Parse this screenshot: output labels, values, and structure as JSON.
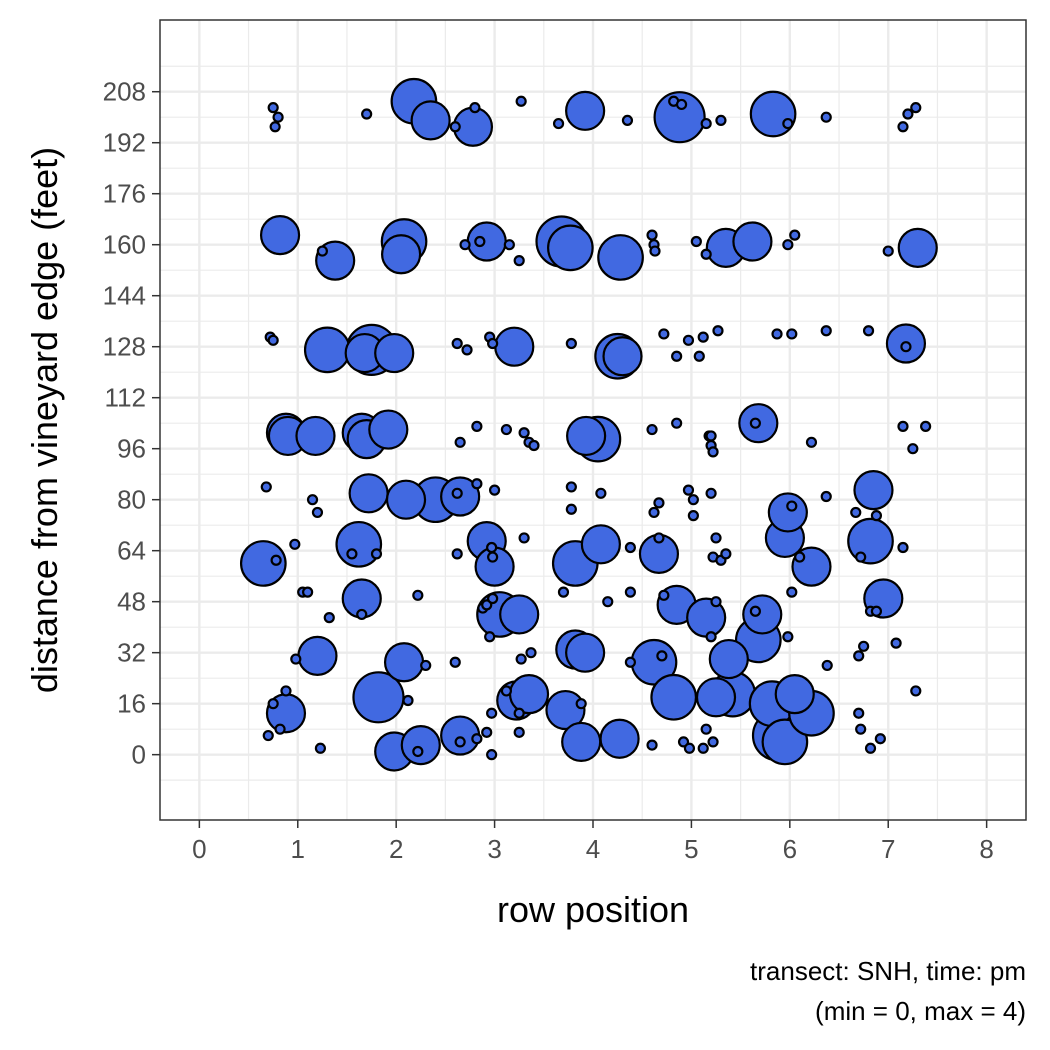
{
  "chart_data": {
    "type": "scatter",
    "subtype": "bubble",
    "xlabel": "row position",
    "ylabel": "distance from vineyard edge (feet)",
    "caption_line1": "transect: SNH, time: pm",
    "caption_line2": "(min = 0, max = 4)",
    "xlim": [
      -0.4,
      8.4
    ],
    "ylim": [
      -20.5,
      230.5
    ],
    "x_ticks": [
      0,
      1,
      2,
      3,
      4,
      5,
      6,
      7,
      8
    ],
    "x_tick_labels": [
      "0",
      "1",
      "2",
      "3",
      "4",
      "5",
      "6",
      "7",
      "8"
    ],
    "y_ticks": [
      0,
      16,
      32,
      48,
      64,
      80,
      96,
      112,
      128,
      144,
      160,
      176,
      192,
      208
    ],
    "y_tick_labels": [
      "0",
      "16",
      "32",
      "48",
      "64",
      "80",
      "96",
      "112",
      "128",
      "144",
      "160",
      "176",
      "192",
      "208"
    ],
    "size_range": [
      0,
      4
    ],
    "grid": true,
    "theme": "bw",
    "point_fill": "#4169E1",
    "point_stroke": "#000000",
    "points": [
      {
        "x": 0.75,
        "y": 203,
        "size": 0
      },
      {
        "x": 0.8,
        "y": 200,
        "size": 0
      },
      {
        "x": 0.77,
        "y": 197,
        "size": 0
      },
      {
        "x": 1.7,
        "y": 201,
        "size": 0
      },
      {
        "x": 2.18,
        "y": 205,
        "size": 3
      },
      {
        "x": 2.35,
        "y": 199,
        "size": 2
      },
      {
        "x": 2.6,
        "y": 197,
        "size": 0
      },
      {
        "x": 2.8,
        "y": 203,
        "size": 0
      },
      {
        "x": 2.78,
        "y": 197,
        "size": 2
      },
      {
        "x": 3.27,
        "y": 205,
        "size": 0
      },
      {
        "x": 3.65,
        "y": 198,
        "size": 0
      },
      {
        "x": 3.92,
        "y": 202,
        "size": 2
      },
      {
        "x": 4.35,
        "y": 199,
        "size": 0
      },
      {
        "x": 4.82,
        "y": 205,
        "size": 0
      },
      {
        "x": 4.88,
        "y": 200,
        "size": 4
      },
      {
        "x": 4.9,
        "y": 204,
        "size": 0
      },
      {
        "x": 5.15,
        "y": 198,
        "size": 0
      },
      {
        "x": 5.3,
        "y": 199,
        "size": 0
      },
      {
        "x": 5.83,
        "y": 201,
        "size": 3
      },
      {
        "x": 5.98,
        "y": 198,
        "size": 0
      },
      {
        "x": 6.37,
        "y": 200,
        "size": 0
      },
      {
        "x": 7.15,
        "y": 197,
        "size": 0
      },
      {
        "x": 7.2,
        "y": 201,
        "size": 0
      },
      {
        "x": 7.28,
        "y": 203,
        "size": 0
      },
      {
        "x": 0.82,
        "y": 163,
        "size": 2
      },
      {
        "x": 1.25,
        "y": 158,
        "size": 0
      },
      {
        "x": 1.38,
        "y": 155,
        "size": 2
      },
      {
        "x": 2.05,
        "y": 157,
        "size": 2
      },
      {
        "x": 2.08,
        "y": 161,
        "size": 3
      },
      {
        "x": 2.7,
        "y": 160,
        "size": 0
      },
      {
        "x": 2.85,
        "y": 161,
        "size": 0
      },
      {
        "x": 2.92,
        "y": 161,
        "size": 2
      },
      {
        "x": 3.15,
        "y": 160,
        "size": 0
      },
      {
        "x": 3.25,
        "y": 155,
        "size": 0
      },
      {
        "x": 3.77,
        "y": 159,
        "size": 3
      },
      {
        "x": 3.68,
        "y": 161,
        "size": 4
      },
      {
        "x": 4.28,
        "y": 156,
        "size": 3
      },
      {
        "x": 4.6,
        "y": 163,
        "size": 0
      },
      {
        "x": 4.62,
        "y": 160,
        "size": 0
      },
      {
        "x": 4.63,
        "y": 158,
        "size": 0
      },
      {
        "x": 5.05,
        "y": 161,
        "size": 0
      },
      {
        "x": 5.15,
        "y": 157,
        "size": 0
      },
      {
        "x": 5.35,
        "y": 159,
        "size": 2
      },
      {
        "x": 5.62,
        "y": 161,
        "size": 2
      },
      {
        "x": 5.98,
        "y": 160,
        "size": 0
      },
      {
        "x": 6.05,
        "y": 163,
        "size": 0
      },
      {
        "x": 7.0,
        "y": 158,
        "size": 0
      },
      {
        "x": 7.3,
        "y": 159,
        "size": 2
      },
      {
        "x": 0.72,
        "y": 131,
        "size": 0
      },
      {
        "x": 0.75,
        "y": 130,
        "size": 0
      },
      {
        "x": 1.3,
        "y": 127,
        "size": 3
      },
      {
        "x": 1.75,
        "y": 127,
        "size": 4
      },
      {
        "x": 1.68,
        "y": 126,
        "size": 2
      },
      {
        "x": 1.98,
        "y": 126,
        "size": 2
      },
      {
        "x": 2.62,
        "y": 129,
        "size": 0
      },
      {
        "x": 2.72,
        "y": 127,
        "size": 0
      },
      {
        "x": 2.95,
        "y": 131,
        "size": 0
      },
      {
        "x": 2.98,
        "y": 129,
        "size": 0
      },
      {
        "x": 3.2,
        "y": 128,
        "size": 2
      },
      {
        "x": 3.78,
        "y": 129,
        "size": 0
      },
      {
        "x": 4.25,
        "y": 125,
        "size": 3
      },
      {
        "x": 4.3,
        "y": 125,
        "size": 2
      },
      {
        "x": 4.72,
        "y": 132,
        "size": 0
      },
      {
        "x": 4.85,
        "y": 125,
        "size": 0
      },
      {
        "x": 4.97,
        "y": 130,
        "size": 0
      },
      {
        "x": 5.08,
        "y": 125,
        "size": 0
      },
      {
        "x": 5.12,
        "y": 131,
        "size": 0
      },
      {
        "x": 5.27,
        "y": 133,
        "size": 0
      },
      {
        "x": 5.87,
        "y": 132,
        "size": 0
      },
      {
        "x": 6.02,
        "y": 132,
        "size": 0
      },
      {
        "x": 6.37,
        "y": 133,
        "size": 0
      },
      {
        "x": 6.8,
        "y": 133,
        "size": 0
      },
      {
        "x": 7.18,
        "y": 128,
        "size": 0
      },
      {
        "x": 7.18,
        "y": 129,
        "size": 2
      },
      {
        "x": 0.88,
        "y": 101,
        "size": 2
      },
      {
        "x": 0.9,
        "y": 100,
        "size": 2
      },
      {
        "x": 1.18,
        "y": 100,
        "size": 2
      },
      {
        "x": 1.65,
        "y": 101,
        "size": 2
      },
      {
        "x": 1.7,
        "y": 99,
        "size": 2
      },
      {
        "x": 1.92,
        "y": 102,
        "size": 2
      },
      {
        "x": 2.65,
        "y": 98,
        "size": 0
      },
      {
        "x": 2.82,
        "y": 103,
        "size": 0
      },
      {
        "x": 3.12,
        "y": 102,
        "size": 0
      },
      {
        "x": 3.3,
        "y": 101,
        "size": 0
      },
      {
        "x": 3.35,
        "y": 98,
        "size": 0
      },
      {
        "x": 3.4,
        "y": 97,
        "size": 0
      },
      {
        "x": 3.93,
        "y": 100,
        "size": 2
      },
      {
        "x": 4.05,
        "y": 99,
        "size": 3
      },
      {
        "x": 4.6,
        "y": 102,
        "size": 0
      },
      {
        "x": 4.85,
        "y": 104,
        "size": 0
      },
      {
        "x": 5.18,
        "y": 100,
        "size": 0
      },
      {
        "x": 5.2,
        "y": 97,
        "size": 0
      },
      {
        "x": 5.22,
        "y": 95,
        "size": 0
      },
      {
        "x": 5.2,
        "y": 100,
        "size": 0
      },
      {
        "x": 5.68,
        "y": 104,
        "size": 2
      },
      {
        "x": 5.65,
        "y": 104,
        "size": 0
      },
      {
        "x": 6.22,
        "y": 98,
        "size": 0
      },
      {
        "x": 7.15,
        "y": 103,
        "size": 0
      },
      {
        "x": 7.25,
        "y": 96,
        "size": 0
      },
      {
        "x": 7.38,
        "y": 103,
        "size": 0
      },
      {
        "x": 0.68,
        "y": 84,
        "size": 0
      },
      {
        "x": 0.65,
        "y": 60,
        "size": 3
      },
      {
        "x": 0.78,
        "y": 61,
        "size": 0
      },
      {
        "x": 0.97,
        "y": 66,
        "size": 0
      },
      {
        "x": 1.15,
        "y": 80,
        "size": 0
      },
      {
        "x": 1.2,
        "y": 76,
        "size": 0
      },
      {
        "x": 1.55,
        "y": 63,
        "size": 0
      },
      {
        "x": 1.62,
        "y": 66,
        "size": 3
      },
      {
        "x": 1.72,
        "y": 82,
        "size": 2
      },
      {
        "x": 1.8,
        "y": 63,
        "size": 0
      },
      {
        "x": 2.1,
        "y": 80,
        "size": 2
      },
      {
        "x": 2.4,
        "y": 80,
        "size": 3
      },
      {
        "x": 2.65,
        "y": 81,
        "size": 2
      },
      {
        "x": 2.62,
        "y": 82,
        "size": 0
      },
      {
        "x": 2.82,
        "y": 85,
        "size": 0
      },
      {
        "x": 2.62,
        "y": 63,
        "size": 0
      },
      {
        "x": 2.92,
        "y": 67,
        "size": 2
      },
      {
        "x": 2.97,
        "y": 65,
        "size": 0
      },
      {
        "x": 2.98,
        "y": 62,
        "size": 0
      },
      {
        "x": 3.0,
        "y": 59,
        "size": 2
      },
      {
        "x": 3.0,
        "y": 83,
        "size": 0
      },
      {
        "x": 3.3,
        "y": 68,
        "size": 0
      },
      {
        "x": 3.78,
        "y": 84,
        "size": 0
      },
      {
        "x": 3.78,
        "y": 77,
        "size": 0
      },
      {
        "x": 3.82,
        "y": 60,
        "size": 3
      },
      {
        "x": 4.08,
        "y": 82,
        "size": 0
      },
      {
        "x": 4.08,
        "y": 66,
        "size": 2
      },
      {
        "x": 4.38,
        "y": 65,
        "size": 0
      },
      {
        "x": 4.62,
        "y": 76,
        "size": 0
      },
      {
        "x": 4.67,
        "y": 79,
        "size": 0
      },
      {
        "x": 4.67,
        "y": 63,
        "size": 2
      },
      {
        "x": 4.67,
        "y": 68,
        "size": 0
      },
      {
        "x": 4.97,
        "y": 83,
        "size": 0
      },
      {
        "x": 5.02,
        "y": 80,
        "size": 0
      },
      {
        "x": 5.02,
        "y": 75,
        "size": 0
      },
      {
        "x": 5.2,
        "y": 82,
        "size": 0
      },
      {
        "x": 5.22,
        "y": 62,
        "size": 0
      },
      {
        "x": 5.25,
        "y": 68,
        "size": 0
      },
      {
        "x": 5.3,
        "y": 61,
        "size": 0
      },
      {
        "x": 5.35,
        "y": 63,
        "size": 0
      },
      {
        "x": 5.95,
        "y": 68,
        "size": 2
      },
      {
        "x": 5.98,
        "y": 76,
        "size": 2
      },
      {
        "x": 6.02,
        "y": 78,
        "size": 0
      },
      {
        "x": 6.1,
        "y": 62,
        "size": 0
      },
      {
        "x": 6.22,
        "y": 59,
        "size": 2
      },
      {
        "x": 6.37,
        "y": 81,
        "size": 0
      },
      {
        "x": 6.67,
        "y": 76,
        "size": 0
      },
      {
        "x": 6.72,
        "y": 62,
        "size": 0
      },
      {
        "x": 6.82,
        "y": 67,
        "size": 3
      },
      {
        "x": 6.85,
        "y": 83,
        "size": 2
      },
      {
        "x": 6.88,
        "y": 75,
        "size": 0
      },
      {
        "x": 7.15,
        "y": 65,
        "size": 0
      },
      {
        "x": 0.98,
        "y": 30,
        "size": 0
      },
      {
        "x": 1.05,
        "y": 51,
        "size": 0
      },
      {
        "x": 1.1,
        "y": 51,
        "size": 0
      },
      {
        "x": 1.2,
        "y": 31,
        "size": 2
      },
      {
        "x": 1.32,
        "y": 43,
        "size": 0
      },
      {
        "x": 1.65,
        "y": 49,
        "size": 2
      },
      {
        "x": 1.65,
        "y": 44,
        "size": 0
      },
      {
        "x": 2.08,
        "y": 29,
        "size": 2
      },
      {
        "x": 2.22,
        "y": 50,
        "size": 0
      },
      {
        "x": 2.3,
        "y": 28,
        "size": 0
      },
      {
        "x": 2.6,
        "y": 29,
        "size": 0
      },
      {
        "x": 2.88,
        "y": 46,
        "size": 0
      },
      {
        "x": 2.92,
        "y": 47,
        "size": 0
      },
      {
        "x": 2.95,
        "y": 37,
        "size": 0
      },
      {
        "x": 2.98,
        "y": 49,
        "size": 0
      },
      {
        "x": 3.05,
        "y": 44,
        "size": 3
      },
      {
        "x": 3.25,
        "y": 44,
        "size": 2
      },
      {
        "x": 3.27,
        "y": 30,
        "size": 0
      },
      {
        "x": 3.37,
        "y": 32,
        "size": 0
      },
      {
        "x": 3.7,
        "y": 51,
        "size": 0
      },
      {
        "x": 3.82,
        "y": 33,
        "size": 2
      },
      {
        "x": 3.92,
        "y": 32,
        "size": 2
      },
      {
        "x": 4.15,
        "y": 48,
        "size": 0
      },
      {
        "x": 4.38,
        "y": 51,
        "size": 0
      },
      {
        "x": 4.38,
        "y": 29,
        "size": 0
      },
      {
        "x": 4.62,
        "y": 29,
        "size": 3
      },
      {
        "x": 4.7,
        "y": 31,
        "size": 0
      },
      {
        "x": 4.72,
        "y": 50,
        "size": 0
      },
      {
        "x": 4.85,
        "y": 47,
        "size": 2
      },
      {
        "x": 5.15,
        "y": 43,
        "size": 2
      },
      {
        "x": 5.25,
        "y": 48,
        "size": 0
      },
      {
        "x": 5.2,
        "y": 37,
        "size": 0
      },
      {
        "x": 5.38,
        "y": 30,
        "size": 2
      },
      {
        "x": 5.65,
        "y": 45,
        "size": 0
      },
      {
        "x": 5.72,
        "y": 44,
        "size": 2
      },
      {
        "x": 5.68,
        "y": 36,
        "size": 3
      },
      {
        "x": 5.98,
        "y": 37,
        "size": 0
      },
      {
        "x": 6.02,
        "y": 51,
        "size": 0
      },
      {
        "x": 6.38,
        "y": 28,
        "size": 0
      },
      {
        "x": 6.7,
        "y": 31,
        "size": 0
      },
      {
        "x": 6.75,
        "y": 34,
        "size": 0
      },
      {
        "x": 6.82,
        "y": 45,
        "size": 0
      },
      {
        "x": 6.88,
        "y": 45,
        "size": 0
      },
      {
        "x": 6.95,
        "y": 49,
        "size": 2
      },
      {
        "x": 7.08,
        "y": 35,
        "size": 0
      },
      {
        "x": 0.7,
        "y": 6,
        "size": 0
      },
      {
        "x": 0.75,
        "y": 16,
        "size": 0
      },
      {
        "x": 0.82,
        "y": 8,
        "size": 0
      },
      {
        "x": 0.88,
        "y": 20,
        "size": 0
      },
      {
        "x": 0.88,
        "y": 13,
        "size": 2
      },
      {
        "x": 1.23,
        "y": 2,
        "size": 0
      },
      {
        "x": 1.82,
        "y": 18,
        "size": 4
      },
      {
        "x": 1.98,
        "y": 1,
        "size": 2
      },
      {
        "x": 2.12,
        "y": 17,
        "size": 0
      },
      {
        "x": 2.25,
        "y": 3,
        "size": 2
      },
      {
        "x": 2.22,
        "y": 1,
        "size": 0
      },
      {
        "x": 2.65,
        "y": 6,
        "size": 2
      },
      {
        "x": 2.65,
        "y": 4,
        "size": 0
      },
      {
        "x": 2.82,
        "y": 5,
        "size": 0
      },
      {
        "x": 2.92,
        "y": 7,
        "size": 0
      },
      {
        "x": 2.97,
        "y": 0,
        "size": 0
      },
      {
        "x": 2.97,
        "y": 13,
        "size": 0
      },
      {
        "x": 3.12,
        "y": 20,
        "size": 0
      },
      {
        "x": 3.22,
        "y": 17,
        "size": 2
      },
      {
        "x": 3.25,
        "y": 13,
        "size": 0
      },
      {
        "x": 3.25,
        "y": 7,
        "size": 0
      },
      {
        "x": 3.35,
        "y": 19,
        "size": 2
      },
      {
        "x": 3.72,
        "y": 14,
        "size": 2
      },
      {
        "x": 3.88,
        "y": 16,
        "size": 0
      },
      {
        "x": 3.88,
        "y": 4,
        "size": 2
      },
      {
        "x": 4.27,
        "y": 5,
        "size": 2
      },
      {
        "x": 4.6,
        "y": 3,
        "size": 0
      },
      {
        "x": 4.82,
        "y": 18,
        "size": 3
      },
      {
        "x": 4.92,
        "y": 4,
        "size": 0
      },
      {
        "x": 4.98,
        "y": 2,
        "size": 0
      },
      {
        "x": 5.12,
        "y": 2,
        "size": 0
      },
      {
        "x": 5.15,
        "y": 8,
        "size": 0
      },
      {
        "x": 5.22,
        "y": 4,
        "size": 0
      },
      {
        "x": 5.25,
        "y": 18,
        "size": 2
      },
      {
        "x": 5.42,
        "y": 19,
        "size": 3
      },
      {
        "x": 5.82,
        "y": 16,
        "size": 3
      },
      {
        "x": 5.88,
        "y": 6,
        "size": 4
      },
      {
        "x": 5.95,
        "y": 4,
        "size": 3
      },
      {
        "x": 6.05,
        "y": 19,
        "size": 2
      },
      {
        "x": 6.22,
        "y": 13,
        "size": 3
      },
      {
        "x": 6.7,
        "y": 13,
        "size": 0
      },
      {
        "x": 6.72,
        "y": 8,
        "size": 0
      },
      {
        "x": 6.82,
        "y": 2,
        "size": 0
      },
      {
        "x": 6.92,
        "y": 5,
        "size": 0
      },
      {
        "x": 7.28,
        "y": 20,
        "size": 0
      }
    ]
  }
}
